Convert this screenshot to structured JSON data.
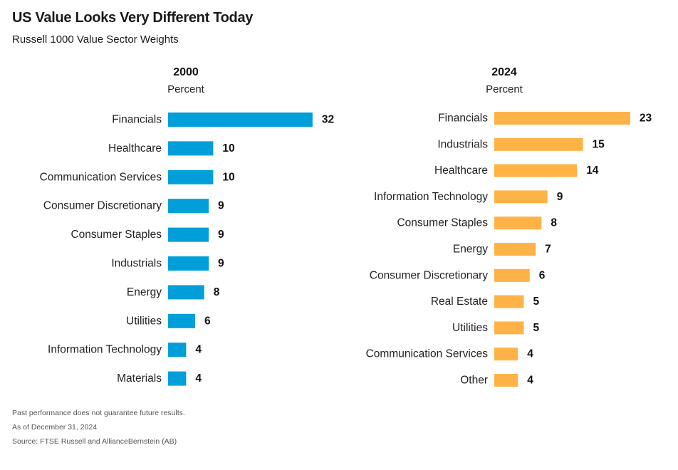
{
  "header": {
    "title": "US Value Looks Very Different Today",
    "subtitle": "Russell 1000 Value Sector Weights"
  },
  "colors": {
    "panel_2000": "#009fd9",
    "panel_2024": "#ffb347"
  },
  "chart_data": [
    {
      "type": "bar",
      "orientation": "horizontal",
      "title": "2000",
      "subtitle": "Percent",
      "categories": [
        "Financials",
        "Healthcare",
        "Communication Services",
        "Consumer Discretionary",
        "Consumer Staples",
        "Industrials",
        "Energy",
        "Utilities",
        "Information Technology",
        "Materials"
      ],
      "values": [
        32,
        10,
        10,
        9,
        9,
        9,
        8,
        6,
        4,
        4
      ],
      "labels": [
        "32",
        "10",
        "10",
        "9",
        "9",
        "9",
        "8",
        "6",
        "4",
        "4"
      ],
      "color": "#009fd9",
      "grid": false
    },
    {
      "type": "bar",
      "orientation": "horizontal",
      "title": "2024",
      "subtitle": "Percent",
      "categories": [
        "Financials",
        "Industrials",
        "Healthcare",
        "Information Technology",
        "Consumer Staples",
        "Energy",
        "Consumer Discretionary",
        "Real Estate",
        "Utilities",
        "Communication Services",
        "Other"
      ],
      "values": [
        23,
        15,
        14,
        9,
        8,
        7,
        6,
        5,
        5,
        4,
        4
      ],
      "labels": [
        "23",
        "15",
        "14",
        "9",
        "8",
        "7",
        "6",
        "5",
        "5",
        "4",
        "4"
      ],
      "color": "#ffb347",
      "grid": false
    }
  ],
  "footer": {
    "disclaimer": "Past performance does not guarantee future results.",
    "as_of": "As of December 31, 2024",
    "source": "Source: FTSE Russell and AllianceBernstein (AB)"
  }
}
